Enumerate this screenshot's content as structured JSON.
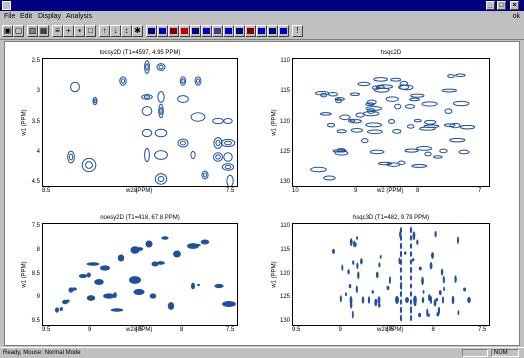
{
  "window": {
    "controls": [
      "_",
      "□",
      "×"
    ]
  },
  "menu": {
    "items": [
      "File",
      "Edit",
      "Display",
      "Analysis"
    ],
    "right_label": "ok"
  },
  "toolbar": {
    "buttons": [
      {
        "name": "open-icon",
        "glyph": "▣"
      },
      {
        "name": "save-icon",
        "glyph": "▢"
      },
      {
        "name": "print-icon",
        "glyph": "▥"
      },
      {
        "name": "zoom-icon",
        "glyph": "▦"
      },
      {
        "name": "pan-icon",
        "glyph": "≡"
      },
      {
        "name": "crosshair-icon",
        "glyph": "+"
      },
      {
        "name": "grid-icon",
        "glyph": "▪"
      },
      {
        "name": "peak-icon",
        "glyph": "□"
      },
      {
        "name": "contour-up-icon",
        "glyph": "↑"
      },
      {
        "name": "contour-down-icon",
        "glyph": "↓"
      },
      {
        "name": "level-icon",
        "glyph": "↕"
      },
      {
        "name": "star-icon",
        "glyph": "✱"
      },
      {
        "name": "color-1-icon",
        "glyph": ""
      },
      {
        "name": "color-2-icon",
        "glyph": ""
      },
      {
        "name": "color-3-icon",
        "glyph": ""
      },
      {
        "name": "color-4-icon",
        "glyph": ""
      },
      {
        "name": "color-5-icon",
        "glyph": ""
      },
      {
        "name": "color-6-icon",
        "glyph": ""
      },
      {
        "name": "color-7-icon",
        "glyph": ""
      },
      {
        "name": "color-8-icon",
        "glyph": ""
      },
      {
        "name": "color-9-icon",
        "glyph": ""
      },
      {
        "name": "color-10-icon",
        "glyph": ""
      },
      {
        "name": "color-11-icon",
        "glyph": ""
      },
      {
        "name": "color-12-icon",
        "glyph": ""
      },
      {
        "name": "color-13-icon",
        "glyph": ""
      },
      {
        "name": "info-icon",
        "glyph": "!"
      }
    ],
    "color_swatches": [
      "#000080",
      "#0000c0",
      "#800000",
      "#c00000",
      "#000080",
      "#0000c0",
      "#404080",
      "#0000c0",
      "#000080",
      "#800000",
      "#0000c0",
      "#000080",
      "#0000c0"
    ]
  },
  "panels": [
    {
      "title": "tocsy2D (T1=4597, 4.95 PPM)",
      "y_ticks": [
        "2.5",
        "3",
        "3.5",
        "4",
        "4.5"
      ],
      "x_ticks": [
        "8.5",
        "8",
        "7.5"
      ],
      "x_label": "w2 (PPM)",
      "y_label": "w1 (PPM)"
    },
    {
      "title": "hsqc2D",
      "y_ticks": [
        "110",
        "115",
        "120",
        "125",
        "130"
      ],
      "x_ticks": [
        "10",
        "9",
        "8",
        "7"
      ],
      "x_label": "w2 (PPM)",
      "y_label": "w1 (PPM)"
    },
    {
      "title": "noesy2D (T1=418, 67.8 PPM)",
      "y_ticks": [
        "7.5",
        "8",
        "8.5",
        "9",
        "9.5"
      ],
      "x_ticks": [
        "9.5",
        "9",
        "8.5",
        "8",
        "7.5"
      ],
      "x_label": "w2 (PPM)",
      "y_label": "w1 (PPM)"
    },
    {
      "title": "hsqc3D (T1=482, 9.79 PPM)",
      "y_ticks": [
        "110",
        "115",
        "120",
        "125",
        "130"
      ],
      "x_ticks": [
        "9.5",
        "9",
        "8.5",
        "8",
        "7.5"
      ],
      "x_label": "w2 (PPM)",
      "y_label": "w1 (PPM)"
    }
  ],
  "status": {
    "message": "Ready, Mouse: Normal Mode",
    "pane1": "",
    "pane2": "NUM"
  },
  "colors": {
    "contour": "#1f4f9f",
    "title_bar": "#000080",
    "chrome": "#c0c0c0"
  }
}
